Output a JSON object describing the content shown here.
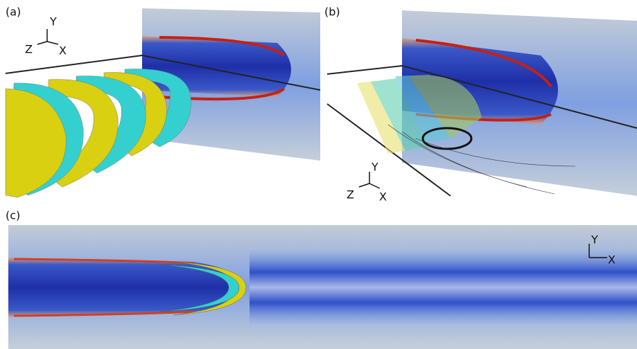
{
  "panels": [
    {
      "label": "(a)",
      "axes": {
        "y": "Y",
        "z": "Z",
        "x": "X"
      }
    },
    {
      "label": "(b)",
      "axes": {
        "y": "Y",
        "z": "Z",
        "x": "X"
      }
    },
    {
      "label": "(c)",
      "axes": {
        "y": "Y",
        "x": "X"
      }
    }
  ]
}
